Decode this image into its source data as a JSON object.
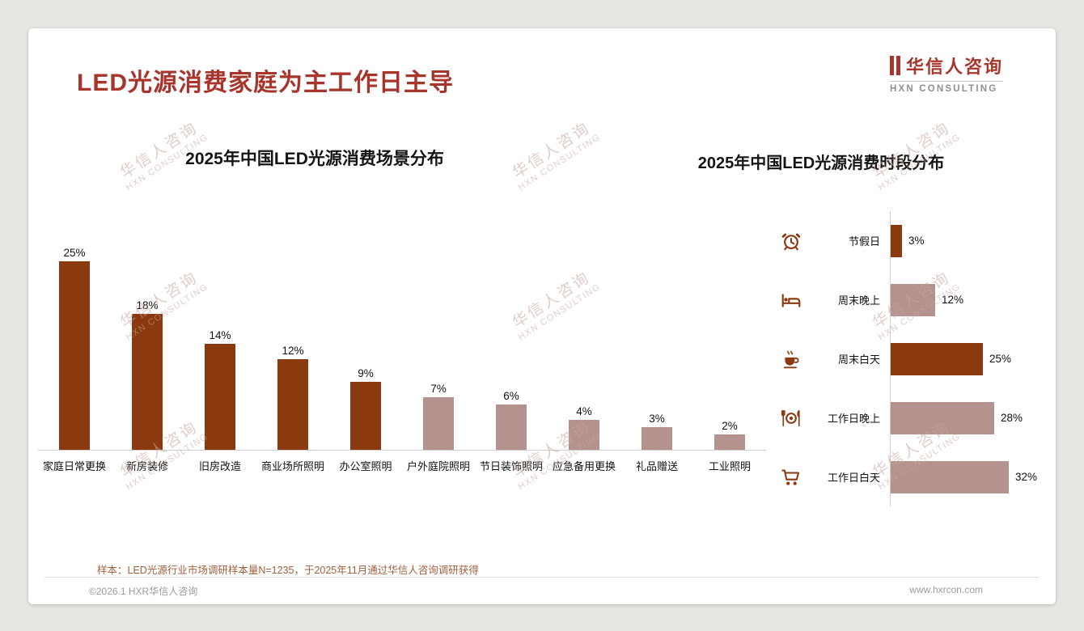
{
  "page": {
    "title": "LED光源消费家庭为主工作日主导",
    "logo": {
      "cn": "华信人咨询",
      "en": "HXN CONSULTING"
    },
    "watermark": {
      "line1": "华信人咨询",
      "line2": "HXN CONSULTING"
    },
    "footnote": "样本：LED光源行业市场调研样本量N=1235，于2025年11月通过华信人咨询调研获得",
    "footer_left": "©2026.1 HXR华信人咨询",
    "footer_right": "www.hxrcon.com"
  },
  "colors": {
    "title_red": "#A8352C",
    "bar_dark": "#8B3A10",
    "bar_light": "#B5928E",
    "axis_gray": "#CFCFCF",
    "footnote_brown": "#A2603D",
    "footer_gray": "#9B9B9B",
    "watermark_pink": "#C9A49F"
  },
  "chart_data": [
    {
      "type": "bar",
      "orientation": "vertical",
      "title": "2025年中国LED光源消费场景分布",
      "categories": [
        "家庭日常更换",
        "新房装修",
        "旧房改造",
        "商业场所照明",
        "办公室照明",
        "户外庭院照明",
        "节日装饰照明",
        "应急备用更换",
        "礼品赠送",
        "工业照明"
      ],
      "values": [
        25,
        18,
        14,
        12,
        9,
        7,
        6,
        4,
        3,
        2
      ],
      "unit": "%",
      "bar_colors": [
        "dark",
        "dark",
        "dark",
        "dark",
        "dark",
        "light",
        "light",
        "light",
        "light",
        "light"
      ],
      "xlabel": "",
      "ylabel": "",
      "ylim": [
        0,
        27
      ],
      "grid": false,
      "legend": "none"
    },
    {
      "type": "bar",
      "orientation": "horizontal",
      "title": "2025年中国LED光源消费时段分布",
      "categories": [
        "节假日",
        "周末晚上",
        "周末白天",
        "工作日晚上",
        "工作日白天"
      ],
      "values": [
        3,
        12,
        25,
        28,
        32
      ],
      "unit": "%",
      "bar_colors": [
        "dark",
        "light",
        "dark",
        "light",
        "light"
      ],
      "icons": [
        "alarm-clock-icon",
        "bed-icon",
        "coffee-icon",
        "dining-icon",
        "cart-icon"
      ],
      "xlabel": "",
      "ylabel": "",
      "xlim": [
        0,
        35
      ],
      "grid": false,
      "legend": "none"
    }
  ]
}
